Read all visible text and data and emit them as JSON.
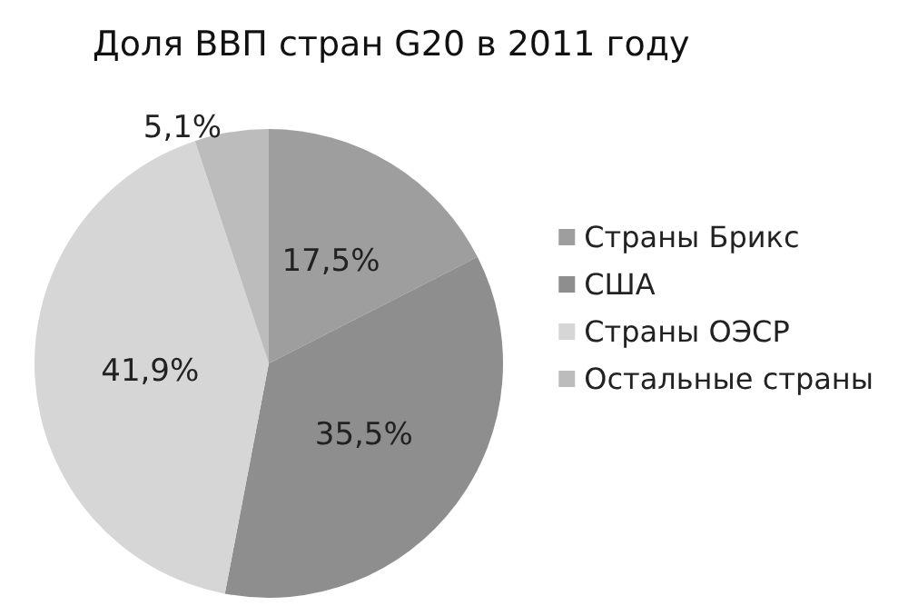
{
  "chart_data": {
    "type": "pie",
    "title": "Доля ВВП стран G20 в 2011 году",
    "categories": [
      "Страны Брикс",
      "США",
      "Страны ОЭСР",
      "Остальные страны"
    ],
    "values": [
      17.5,
      35.5,
      41.9,
      5.1
    ],
    "colors": [
      "#9e9e9e",
      "#8e8e8e",
      "#d6d6d6",
      "#bcbcbc"
    ],
    "value_labels": [
      "17,5%",
      "35,5%",
      "41,9%",
      "5,1%"
    ],
    "legend": "right"
  }
}
